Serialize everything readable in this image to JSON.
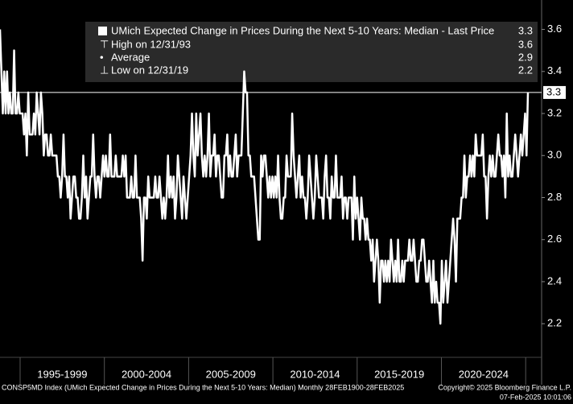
{
  "chart_data": {
    "type": "line",
    "title": "UMich Expected Change in Prices During the Next 5-10 Years: Median - Last Price",
    "last_price": 3.3,
    "stats": [
      {
        "label": "High on 12/31/93",
        "value": 3.6
      },
      {
        "label": "Average",
        "value": 2.9
      },
      {
        "label": "Low on 12/31/19",
        "value": 2.2
      }
    ],
    "x_labels": [
      "1995-1999",
      "2000-2004",
      "2005-2009",
      "2010-2014",
      "2015-2019",
      "2020-2024"
    ],
    "color": "#ffffff",
    "ylim": [
      2.04,
      3.74
    ],
    "yticks": [
      {
        "value": 2.2,
        "label": "2.2"
      },
      {
        "value": 2.4,
        "label": "2.4"
      },
      {
        "value": 2.6,
        "label": "2.6"
      },
      {
        "value": 2.8,
        "label": "2.8"
      },
      {
        "value": 3,
        "label": "3.0"
      },
      {
        "value": 3.2,
        "label": "3.2"
      },
      {
        "value": 3.4,
        "label": "3.4"
      },
      {
        "value": 3.6,
        "label": "3.6"
      }
    ],
    "values": [
      3.6,
      3.4,
      3.2,
      3.4,
      3.2,
      3.4,
      3.2,
      3.3,
      3.2,
      3.2,
      3.5,
      3.2,
      3.2,
      3.3,
      3.2,
      3.2,
      3.2,
      3.1,
      3.2,
      3.0,
      3.3,
      3.1,
      3.1,
      3.1,
      3.2,
      3.1,
      3.3,
      3.2,
      3.1,
      3.3,
      3.2,
      3.0,
      3.1,
      3.1,
      3.0,
      3.0,
      3.1,
      3.0,
      3.0,
      3.0,
      3.0,
      2.9,
      2.9,
      2.8,
      2.9,
      3.1,
      2.9,
      2.9,
      2.8,
      2.9,
      2.7,
      2.8,
      2.9,
      2.9,
      2.8,
      2.8,
      2.7,
      2.7,
      2.8,
      3.0,
      2.8,
      2.9,
      2.7,
      2.8,
      2.9,
      2.9,
      3.1,
      2.9,
      2.8,
      2.9,
      2.9,
      2.8,
      2.9,
      3.0,
      2.9,
      3.0,
      2.9,
      2.9,
      3.1,
      2.9,
      2.9,
      2.9,
      3.0,
      2.9,
      2.9,
      2.9,
      2.9,
      3.0,
      2.9,
      3.0,
      2.8,
      2.8,
      2.8,
      2.9,
      2.8,
      2.8,
      3.0,
      2.8,
      2.8,
      2.8,
      2.7,
      2.5,
      2.8,
      2.8,
      2.7,
      2.9,
      2.8,
      2.8,
      2.8,
      2.8,
      2.9,
      2.8,
      2.8,
      2.9,
      2.8,
      2.7,
      2.8,
      2.7,
      2.8,
      3.0,
      2.8,
      2.9,
      2.8,
      2.9,
      2.7,
      2.8,
      3.0,
      2.9,
      2.8,
      2.7,
      2.9,
      2.8,
      2.7,
      2.8,
      2.9,
      3.0,
      3.2,
      3.0,
      2.9,
      3.2,
      3.0,
      3.1,
      3.2,
      3.0,
      2.9,
      3.0,
      2.9,
      3.0,
      3.2,
      2.9,
      3.0,
      3.0,
      3.1,
      2.9,
      3.0,
      3.0,
      2.9,
      2.8,
      2.8,
      3.0,
      3.0,
      3.1,
      2.9,
      3.0,
      2.9,
      2.9,
      3.0,
      3.1,
      2.9,
      3.0,
      3.0,
      3.0,
      3.2,
      3.4,
      3.3,
      3.3,
      3.0,
      3.0,
      2.9,
      2.9,
      2.9,
      2.8,
      2.7,
      2.6,
      2.6,
      3.0,
      2.9,
      3.0,
      3.0,
      2.9,
      2.8,
      2.9,
      2.8,
      2.9,
      2.8,
      2.9,
      2.8,
      3.0,
      2.8,
      2.7,
      2.7,
      2.8,
      2.8,
      3.0,
      2.9,
      2.9,
      2.9,
      3.2,
      3.0,
      2.9,
      2.8,
      2.9,
      3.0,
      2.8,
      2.9,
      2.8,
      2.8,
      2.7,
      2.8,
      3.0,
      2.9,
      2.8,
      2.7,
      2.8,
      3.0,
      2.9,
      2.8,
      2.8,
      2.8,
      2.7,
      2.9,
      3.0,
      2.8,
      2.8,
      2.7,
      2.9,
      2.8,
      2.8,
      3.0,
      2.8,
      2.8,
      2.8,
      2.9,
      2.7,
      2.8,
      2.8,
      2.7,
      2.8,
      2.8,
      2.8,
      2.6,
      2.9,
      2.7,
      2.8,
      2.7,
      2.6,
      2.8,
      2.7,
      2.7,
      2.6,
      2.7,
      2.6,
      2.6,
      2.5,
      2.6,
      2.4,
      2.5,
      2.6,
      2.5,
      2.3,
      2.5,
      2.5,
      2.4,
      2.5,
      2.4,
      2.5,
      2.4,
      2.6,
      2.5,
      2.4,
      2.5,
      2.4,
      2.6,
      2.4,
      2.4,
      2.5,
      2.4,
      2.5,
      2.5,
      2.5,
      2.6,
      2.5,
      2.5,
      2.6,
      2.5,
      2.4,
      2.4,
      2.5,
      2.5,
      2.6,
      2.6,
      2.5,
      2.4,
      2.4,
      2.5,
      2.4,
      2.3,
      2.5,
      2.3,
      2.4,
      2.3,
      2.3,
      2.2,
      2.5,
      2.3,
      2.4,
      2.5,
      2.3,
      2.4,
      2.5,
      2.6,
      2.7,
      2.6,
      2.4,
      2.7,
      2.7,
      2.7,
      2.8,
      2.8,
      3.0,
      2.8,
      2.9,
      2.9,
      3.0,
      2.9,
      3.0,
      2.9,
      3.1,
      3.0,
      3.0,
      3.0,
      3.0,
      3.1,
      2.9,
      2.9,
      2.7,
      2.9,
      3.0,
      2.9,
      3.0,
      2.9,
      2.9,
      3.0,
      3.1,
      3.0,
      3.0,
      2.9,
      3.0,
      2.8,
      3.2,
      2.9,
      3.0,
      2.9,
      2.9,
      3.0,
      3.1,
      3.0,
      2.9,
      3.0,
      3.1,
      3.0,
      3.1,
      3.2,
      3.0,
      3.3
    ],
    "footer_left": "CONSP5MD Index (UMich Expected Change in Prices During the Next 5-10 Years: Median)  Monthly 28FEB1900-28FEB2025",
    "footer_right": "Copyright© 2025 Bloomberg Finance L.P.",
    "timestamp": "07-Feb-2025 10:01:06"
  }
}
